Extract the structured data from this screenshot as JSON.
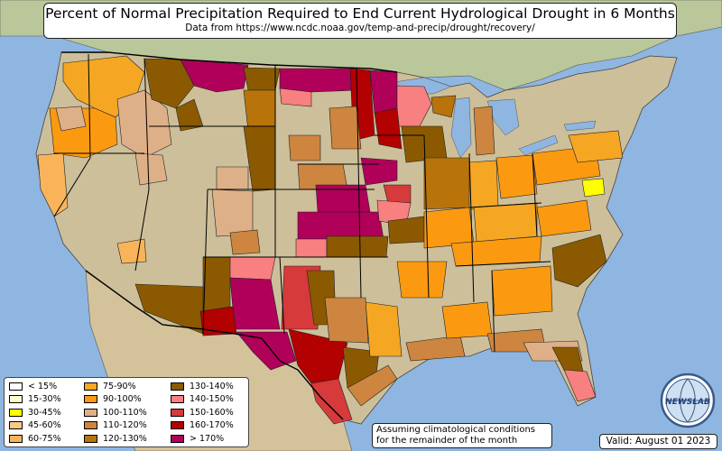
{
  "title": "Percent of Normal Precipitation Required to End Current Hydrological Drought in 6 Months",
  "subtitle": "Data from https://www.ncdc.noaa.gov/temp-and-precip/drought/recovery/",
  "legend": [
    {
      "label": "< 15%",
      "color": "#ffffff"
    },
    {
      "label": "15-30%",
      "color": "#ffffcc"
    },
    {
      "label": "30-45%",
      "color": "#ffff00"
    },
    {
      "label": "45-60%",
      "color": "#f9c98a"
    },
    {
      "label": "60-75%",
      "color": "#f9b45a"
    },
    {
      "label": "75-90%",
      "color": "#f5a623"
    },
    {
      "label": "90-100%",
      "color": "#fb9a10"
    },
    {
      "label": "100-110%",
      "color": "#deb088"
    },
    {
      "label": "110-120%",
      "color": "#cd853f"
    },
    {
      "label": "120-130%",
      "color": "#b8740a"
    },
    {
      "label": "130-140%",
      "color": "#8b5a00"
    },
    {
      "label": "140-150%",
      "color": "#f88080"
    },
    {
      "label": "150-160%",
      "color": "#d63a3a"
    },
    {
      "label": "160-170%",
      "color": "#b30000"
    },
    {
      "label": "> 170%",
      "color": "#b0005a"
    }
  ],
  "note": {
    "line1": "Assuming climatological conditions",
    "line2": "for the remainder of the month"
  },
  "valid": "Valid: August 01 2023",
  "logo": {
    "icon": "newslab-globe-logo",
    "text": "NEWSLAB"
  },
  "colors": {
    "ocean": "#8fb6e0",
    "land": "#cdbf9a",
    "canada": "#b9c79a",
    "mexico": "#d4c29a"
  }
}
